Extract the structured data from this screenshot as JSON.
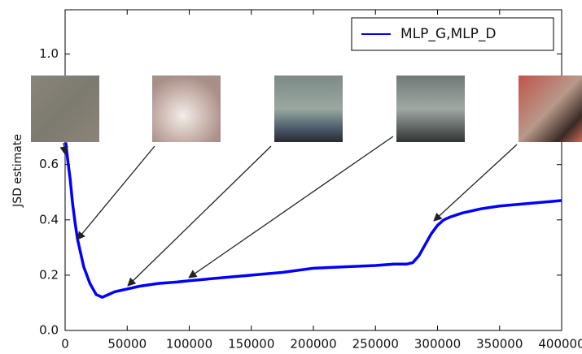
{
  "chart_data": {
    "type": "line",
    "ylabel": "JSD estimate",
    "x": [
      500,
      2000,
      4000,
      6000,
      8000,
      10000,
      12500,
      15000,
      17500,
      20000,
      22500,
      25000,
      27500,
      30000,
      35000,
      40000,
      45000,
      50000,
      60000,
      75000,
      90000,
      100000,
      125000,
      150000,
      175000,
      200000,
      225000,
      250000,
      265000,
      275000,
      280000,
      285000,
      290000,
      295000,
      300000,
      305000,
      310000,
      320000,
      335000,
      350000,
      375000,
      400000
    ],
    "series": [
      {
        "name": "MLP_G,MLP_D",
        "color": "#0000ff",
        "values": [
          0.68,
          0.62,
          0.55,
          0.46,
          0.39,
          0.33,
          0.28,
          0.23,
          0.2,
          0.17,
          0.15,
          0.13,
          0.125,
          0.12,
          0.13,
          0.14,
          0.145,
          0.15,
          0.16,
          0.17,
          0.175,
          0.18,
          0.19,
          0.2,
          0.21,
          0.225,
          0.23,
          0.235,
          0.24,
          0.24,
          0.245,
          0.27,
          0.31,
          0.35,
          0.38,
          0.4,
          0.41,
          0.425,
          0.44,
          0.45,
          0.46,
          0.47
        ]
      }
    ],
    "xlim": [
      0,
      400000
    ],
    "xticks": [
      0,
      50000,
      100000,
      150000,
      200000,
      250000,
      300000,
      350000,
      400000
    ],
    "ylim": [
      0,
      1.16
    ],
    "yticks": [
      {
        "value": 0,
        "label": "0.0"
      },
      0.2,
      0.4,
      0.6,
      0.8,
      {
        "value": 1,
        "label": "1.0"
      }
    ],
    "legend": "upper right"
  }
}
